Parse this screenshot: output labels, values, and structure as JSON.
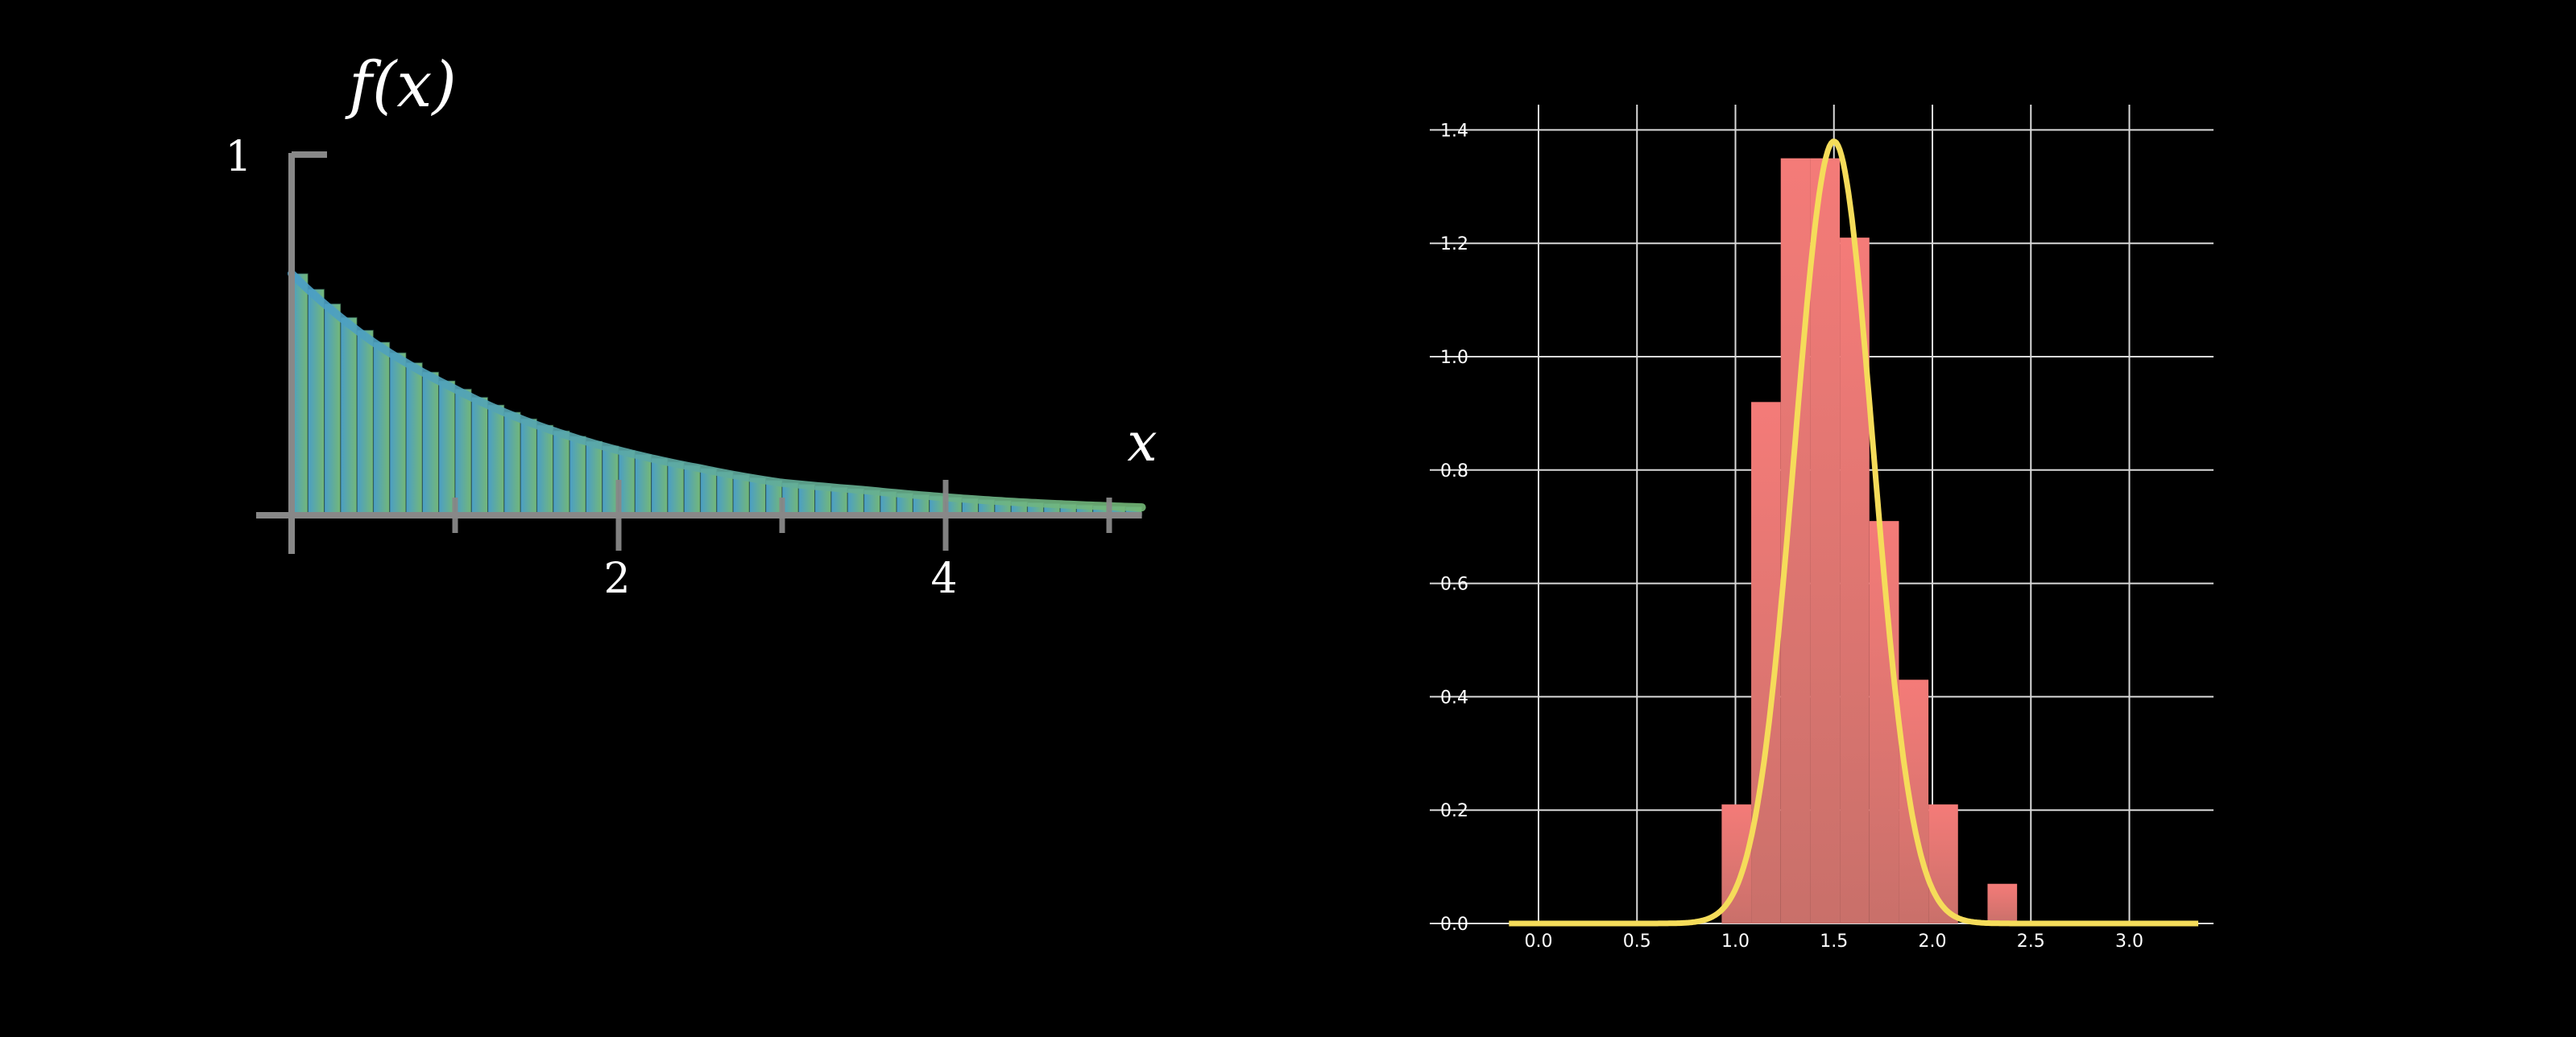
{
  "chart_data": [
    {
      "type": "area",
      "title": "",
      "ylabel": "f(x)",
      "xlabel": "x",
      "y_tick_label": "1",
      "x_tick_labels": [
        "2",
        "4"
      ],
      "xlim": [
        0,
        5.2
      ],
      "ylim": [
        0,
        1
      ],
      "x_ticks": [
        0,
        1,
        2,
        3,
        4,
        5
      ],
      "function_samples": {
        "x": [
          0,
          0.5,
          1,
          1.5,
          2,
          2.5,
          3,
          3.5,
          4,
          4.5,
          5,
          5.2
        ],
        "y": [
          0.67,
          0.48,
          0.35,
          0.25,
          0.18,
          0.13,
          0.09,
          0.07,
          0.05,
          0.035,
          0.025,
          0.022
        ]
      },
      "riemann_bar_width": 0.1,
      "colors": {
        "fill_start": "#4a9ec7",
        "fill_end": "#74b877",
        "curve": "#7fd6d2",
        "axis": "#888888"
      }
    },
    {
      "type": "bar",
      "title": "",
      "xlabel": "",
      "ylabel": "",
      "xlim": [
        -0.15,
        3.35
      ],
      "ylim": [
        0,
        1.4
      ],
      "grid": true,
      "x_ticks": [
        "0.0",
        "0.5",
        "1.0",
        "1.5",
        "2.0",
        "2.5",
        "3.0"
      ],
      "y_ticks": [
        "0.0",
        "0.2",
        "0.4",
        "0.6",
        "0.8",
        "1.0",
        "1.2",
        "1.4"
      ],
      "histogram": {
        "bin_edges": [
          0.93,
          1.08,
          1.23,
          1.38,
          1.53,
          1.68,
          1.83,
          1.98,
          2.13,
          2.28,
          2.43
        ],
        "values": [
          0.21,
          0.92,
          1.35,
          1.35,
          1.21,
          0.71,
          0.43,
          0.21,
          0.0,
          0.07
        ]
      },
      "curve": {
        "type": "normal",
        "mean": 1.5,
        "std": 0.2,
        "peak": 1.38
      },
      "colors": {
        "bar": "#f07a76",
        "curve": "#f5dc5a",
        "grid": "#d9d9d9"
      }
    }
  ]
}
